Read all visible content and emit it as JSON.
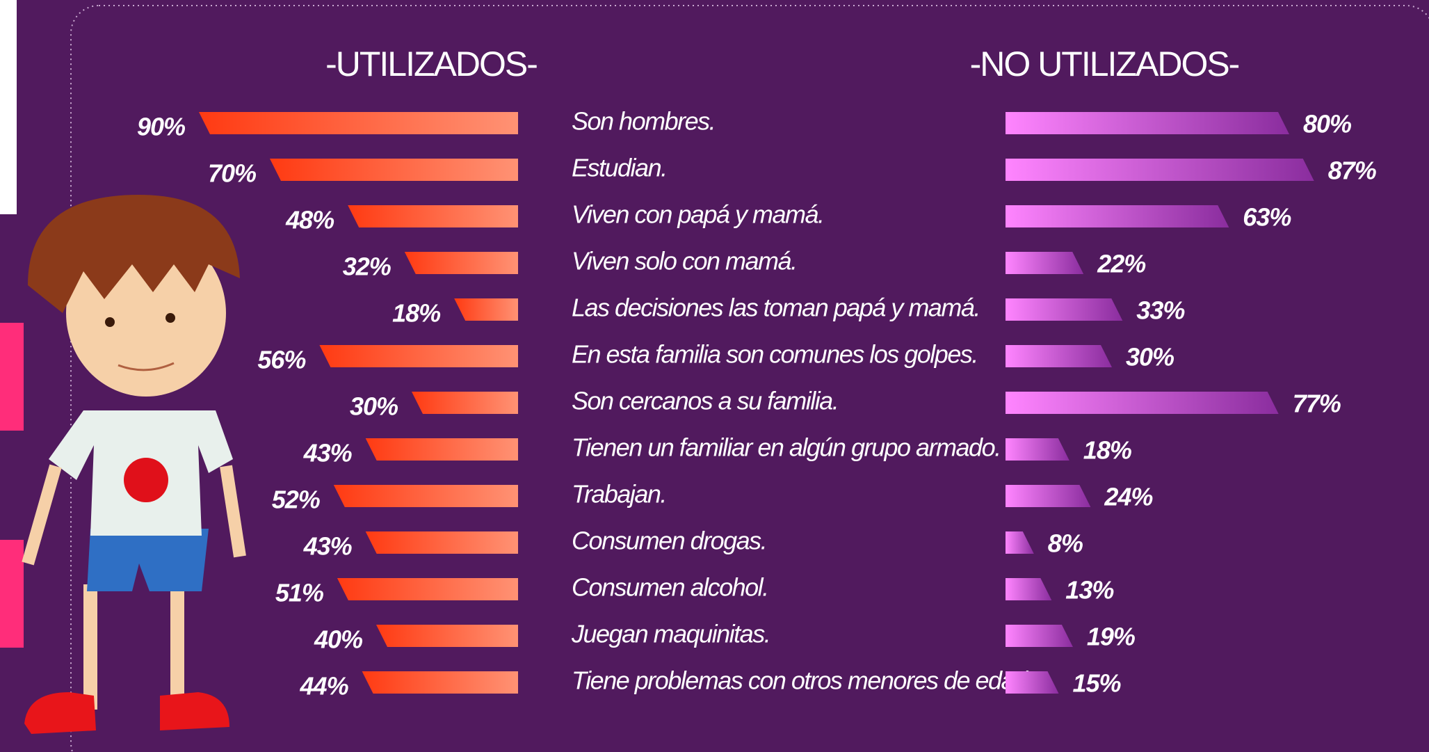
{
  "chart_data": {
    "type": "butterfly-bar",
    "categories": [
      "Son hombres.",
      "Estudian.",
      "Viven con papá y mamá.",
      "Viven solo con mamá.",
      "Las decisiones las toman papá y mamá.",
      "En esta familia son comunes los golpes.",
      "Son cercanos a su familia.",
      "Tienen un familiar en algún grupo armado.",
      "Trabajan.",
      "Consumen drogas.",
      "Consumen alcohol.",
      "Juegan maquinitas.",
      "Tiene problemas con otros menores de edad."
    ],
    "series": [
      {
        "name": "-UTILIZADOS-",
        "gradient": [
          "#ff3a12",
          "#ff9274"
        ],
        "values": [
          90,
          70,
          48,
          32,
          18,
          56,
          30,
          43,
          52,
          43,
          51,
          40,
          44
        ],
        "value_labels": [
          "90%",
          "70%",
          "48%",
          "32%",
          "18%",
          "56%",
          "30%",
          "43%",
          "52%",
          "43%",
          "51%",
          "40%",
          "44%"
        ]
      },
      {
        "name": "-NO UTILIZADOS-",
        "gradient": [
          "#ff85ff",
          "#8a2d9e"
        ],
        "values": [
          80,
          87,
          63,
          22,
          33,
          30,
          77,
          18,
          24,
          8,
          13,
          19,
          15
        ],
        "value_labels": [
          "80%",
          "87%",
          "63%",
          "22%",
          "33%",
          "30%",
          "77%",
          "18%",
          "24%",
          "8%",
          "13%",
          "19%",
          "15%"
        ]
      }
    ]
  }
}
